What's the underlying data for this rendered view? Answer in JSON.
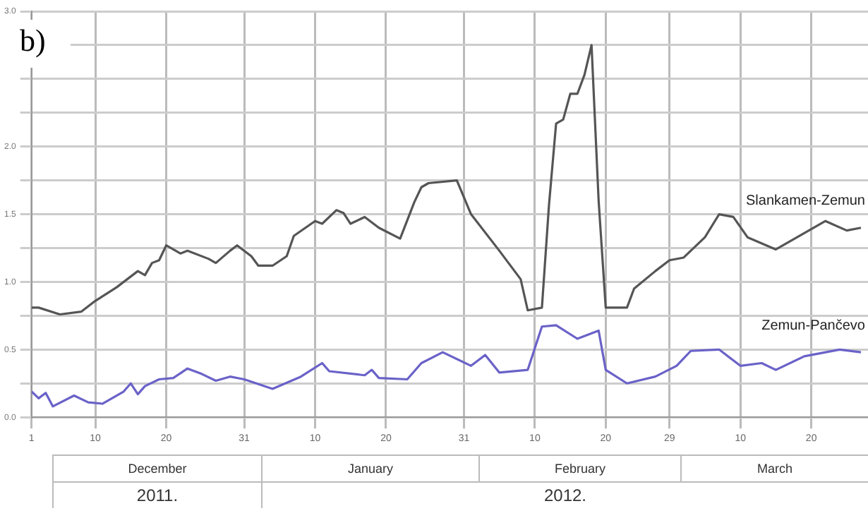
{
  "chart_data": {
    "type": "line",
    "title": "b)",
    "xlim": [
      "2011-12-01",
      "2012-03-28"
    ],
    "xticks": [
      {
        "value": "2011-12-01",
        "label": "1"
      },
      {
        "value": "2011-12-10",
        "label": "10"
      },
      {
        "value": "2011-12-20",
        "label": "20"
      },
      {
        "value": "2011-12-31",
        "label": "31"
      },
      {
        "value": "2012-01-10",
        "label": "10"
      },
      {
        "value": "2012-01-20",
        "label": "20"
      },
      {
        "value": "2012-01-31",
        "label": "31"
      },
      {
        "value": "2012-02-10",
        "label": "10"
      },
      {
        "value": "2012-02-20",
        "label": "20"
      },
      {
        "value": "2012-02-29",
        "label": "29"
      },
      {
        "value": "2012-03-10",
        "label": "10"
      },
      {
        "value": "2012-03-20",
        "label": "20"
      }
    ],
    "ylim": [
      0,
      3
    ],
    "yticks": [
      {
        "value": 0,
        "label": "0.0"
      },
      {
        "value": 0.25,
        "label": null
      },
      {
        "value": 0.5,
        "label": "0.5"
      },
      {
        "value": 0.75,
        "label": null
      },
      {
        "value": 1,
        "label": "1.0"
      },
      {
        "value": 1.25,
        "label": null
      },
      {
        "value": 1.5,
        "label": "1.5"
      },
      {
        "value": 1.75,
        "label": null
      },
      {
        "value": 2,
        "label": "2.0"
      },
      {
        "value": 2.25,
        "label": null
      },
      {
        "value": 2.5,
        "label": null
      },
      {
        "value": 2.75,
        "label": null
      },
      {
        "value": 3,
        "label": "3.0"
      }
    ],
    "grid": true,
    "marker": "none",
    "line_style": "solid",
    "series": [
      {
        "name": "Slankamen-Zemun",
        "color": "#555555",
        "x": [
          "2011-12-01",
          "2011-12-02",
          "2011-12-05",
          "2011-12-08",
          "2011-12-10",
          "2011-12-13",
          "2011-12-16",
          "2011-12-17",
          "2011-12-18",
          "2011-12-19",
          "2011-12-20",
          "2011-12-22",
          "2011-12-23",
          "2011-12-26",
          "2011-12-27",
          "2011-12-29",
          "2011-12-30",
          "2012-01-01",
          "2012-01-02",
          "2012-01-04",
          "2012-01-06",
          "2012-01-07",
          "2012-01-10",
          "2012-01-11",
          "2012-01-13",
          "2012-01-14",
          "2012-01-15",
          "2012-01-17",
          "2012-01-19",
          "2012-01-22",
          "2012-01-24",
          "2012-01-25",
          "2012-01-26",
          "2012-01-30",
          "2012-02-01",
          "2012-02-05",
          "2012-02-08",
          "2012-02-09",
          "2012-02-11",
          "2012-02-12",
          "2012-02-13",
          "2012-02-14",
          "2012-02-15",
          "2012-02-16",
          "2012-02-17",
          "2012-02-18",
          "2012-02-19",
          "2012-02-20",
          "2012-02-23",
          "2012-02-24",
          "2012-02-27",
          "2012-02-29",
          "2012-03-02",
          "2012-03-05",
          "2012-03-07",
          "2012-03-09",
          "2012-03-11",
          "2012-03-15",
          "2012-03-18",
          "2012-03-22",
          "2012-03-25",
          "2012-03-27"
        ],
        "values": [
          0.81,
          0.81,
          0.76,
          0.78,
          0.86,
          0.96,
          1.08,
          1.05,
          1.14,
          1.16,
          1.27,
          1.21,
          1.23,
          1.17,
          1.14,
          1.23,
          1.27,
          1.19,
          1.12,
          1.12,
          1.19,
          1.34,
          1.45,
          1.43,
          1.53,
          1.51,
          1.43,
          1.48,
          1.4,
          1.32,
          1.59,
          1.7,
          1.73,
          1.75,
          1.5,
          1.23,
          1.02,
          0.79,
          0.81,
          1.57,
          2.17,
          2.2,
          2.39,
          2.39,
          2.53,
          2.75,
          1.6,
          0.81,
          0.81,
          0.95,
          1.08,
          1.16,
          1.18,
          1.33,
          1.5,
          1.48,
          1.33,
          1.24,
          1.33,
          1.45,
          1.38,
          1.4
        ]
      },
      {
        "name": "Zemun-Pančevo",
        "color": "#6a62c8",
        "x": [
          "2011-12-01",
          "2011-12-02",
          "2011-12-03",
          "2011-12-04",
          "2011-12-07",
          "2011-12-09",
          "2011-12-11",
          "2011-12-14",
          "2011-12-15",
          "2011-12-16",
          "2011-12-17",
          "2011-12-19",
          "2011-12-21",
          "2011-12-23",
          "2011-12-25",
          "2011-12-27",
          "2011-12-29",
          "2011-12-31",
          "2012-01-04",
          "2012-01-08",
          "2012-01-11",
          "2012-01-12",
          "2012-01-17",
          "2012-01-18",
          "2012-01-19",
          "2012-01-23",
          "2012-01-25",
          "2012-01-28",
          "2012-02-01",
          "2012-02-03",
          "2012-02-05",
          "2012-02-09",
          "2012-02-11",
          "2012-02-13",
          "2012-02-16",
          "2012-02-19",
          "2012-02-20",
          "2012-02-23",
          "2012-02-27",
          "2012-03-01",
          "2012-03-03",
          "2012-03-07",
          "2012-03-10",
          "2012-03-13",
          "2012-03-15",
          "2012-03-19",
          "2012-03-24",
          "2012-03-27"
        ],
        "values": [
          0.19,
          0.14,
          0.18,
          0.08,
          0.16,
          0.11,
          0.1,
          0.19,
          0.25,
          0.17,
          0.23,
          0.28,
          0.29,
          0.36,
          0.32,
          0.27,
          0.3,
          0.28,
          0.21,
          0.3,
          0.4,
          0.34,
          0.31,
          0.35,
          0.29,
          0.28,
          0.4,
          0.48,
          0.38,
          0.46,
          0.33,
          0.35,
          0.67,
          0.68,
          0.58,
          0.64,
          0.35,
          0.25,
          0.3,
          0.38,
          0.49,
          0.5,
          0.38,
          0.4,
          0.35,
          0.45,
          0.5,
          0.48
        ]
      }
    ],
    "annotations": [
      "December",
      "January",
      "February",
      "March",
      "2011.",
      "2012."
    ]
  }
}
